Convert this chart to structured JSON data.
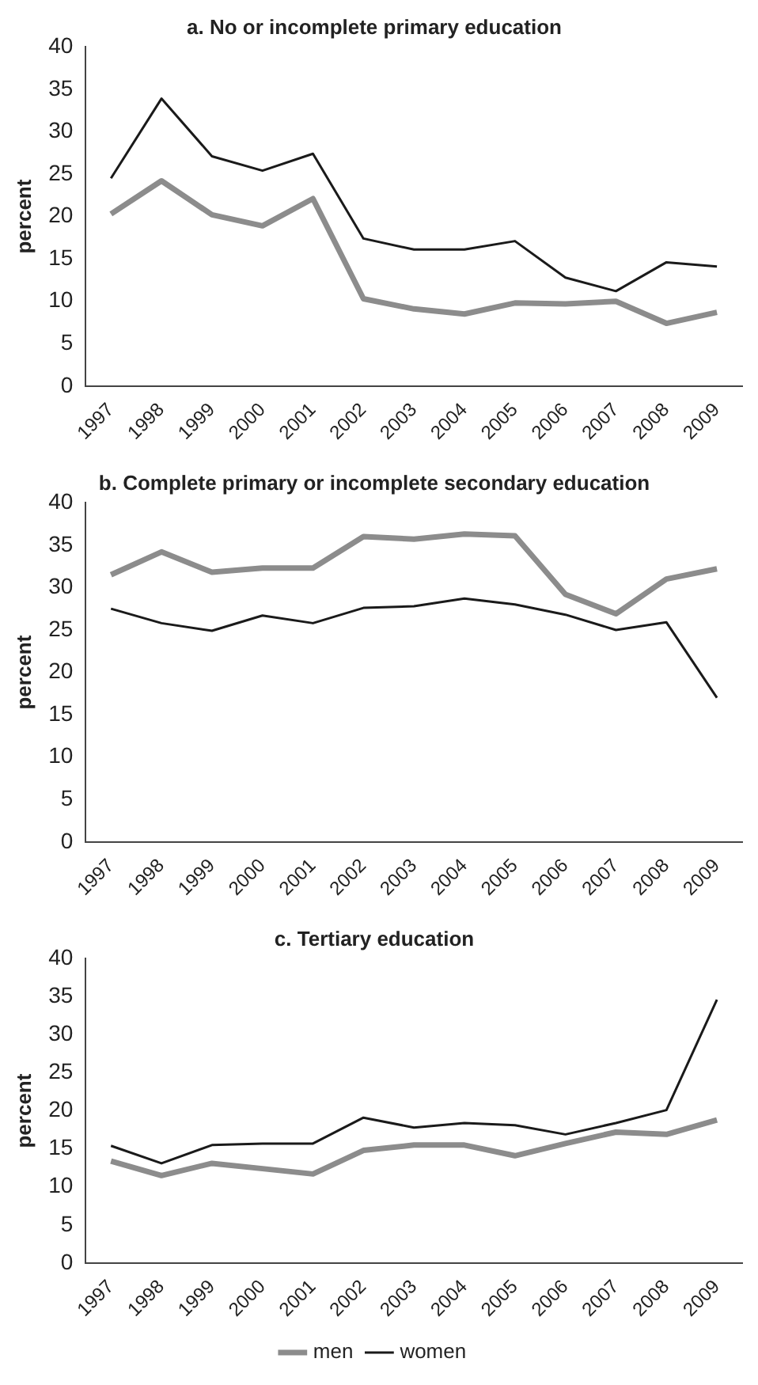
{
  "chart_data": [
    {
      "type": "line",
      "title": "a. No or incomplete primary education",
      "ylabel": "percent",
      "categories": [
        "1997",
        "1998",
        "1999",
        "2000",
        "2001",
        "2002",
        "2003",
        "2004",
        "2005",
        "2006",
        "2007",
        "2008",
        "2009"
      ],
      "series": [
        {
          "color": "#1a1a1a",
          "values": [
            24.5,
            33.9,
            27.1,
            25.4,
            27.4,
            17.4,
            16.1,
            16.1,
            17.1,
            12.8,
            11.2,
            14.6,
            14.1
          ]
        },
        {
          "color": "#8c8c8c",
          "values": [
            20.3,
            24.2,
            20.2,
            18.9,
            22.1,
            10.3,
            9.1,
            8.5,
            9.8,
            9.7,
            10.0,
            7.4,
            8.7
          ]
        }
      ],
      "ylim": [
        0,
        40
      ],
      "yticks": [
        0,
        5,
        10,
        15,
        20,
        25,
        30,
        35,
        40
      ],
      "grid": false,
      "legend": false,
      "marker": "none",
      "line_style": "solid"
    },
    {
      "type": "line",
      "title": "b. Complete primary or incomplete secondary education",
      "ylabel": "percent",
      "categories": [
        "1997",
        "1998",
        "1999",
        "2000",
        "2001",
        "2002",
        "2003",
        "2004",
        "2005",
        "2006",
        "2007",
        "2008",
        "2009"
      ],
      "series": [
        {
          "color": "#1a1a1a",
          "values": [
            27.5,
            25.8,
            24.9,
            26.7,
            25.8,
            27.6,
            27.8,
            28.7,
            28.0,
            26.8,
            25.0,
            25.9,
            17.0
          ]
        },
        {
          "color": "#8c8c8c",
          "values": [
            31.5,
            34.2,
            31.8,
            32.3,
            32.3,
            36.0,
            35.7,
            36.3,
            36.1,
            29.2,
            26.9,
            31.0,
            32.2
          ]
        }
      ],
      "ylim": [
        0,
        40
      ],
      "yticks": [
        0,
        5,
        10,
        15,
        20,
        25,
        30,
        35,
        40
      ],
      "grid": false,
      "legend": false,
      "marker": "none",
      "line_style": "solid"
    },
    {
      "type": "line",
      "title": "c. Tertiary education",
      "ylabel": "percent",
      "categories": [
        "1997",
        "1998",
        "1999",
        "2000",
        "2001",
        "2002",
        "2003",
        "2004",
        "2005",
        "2006",
        "2007",
        "2008",
        "2009"
      ],
      "series": [
        {
          "name": "women",
          "color": "#1a1a1a",
          "values": [
            15.4,
            13.1,
            15.5,
            15.7,
            15.7,
            19.1,
            17.8,
            18.4,
            18.1,
            16.9,
            18.4,
            20.1,
            34.6
          ]
        },
        {
          "name": "men",
          "color": "#8c8c8c",
          "values": [
            13.4,
            11.5,
            13.1,
            12.4,
            11.7,
            14.8,
            15.5,
            15.5,
            14.1,
            15.7,
            17.2,
            16.9,
            18.8
          ]
        }
      ],
      "ylim": [
        0,
        40
      ],
      "yticks": [
        0,
        5,
        10,
        15,
        20,
        25,
        30,
        35,
        40
      ],
      "grid": false,
      "legend": "bottom",
      "marker": "none",
      "line_style": "solid"
    }
  ]
}
